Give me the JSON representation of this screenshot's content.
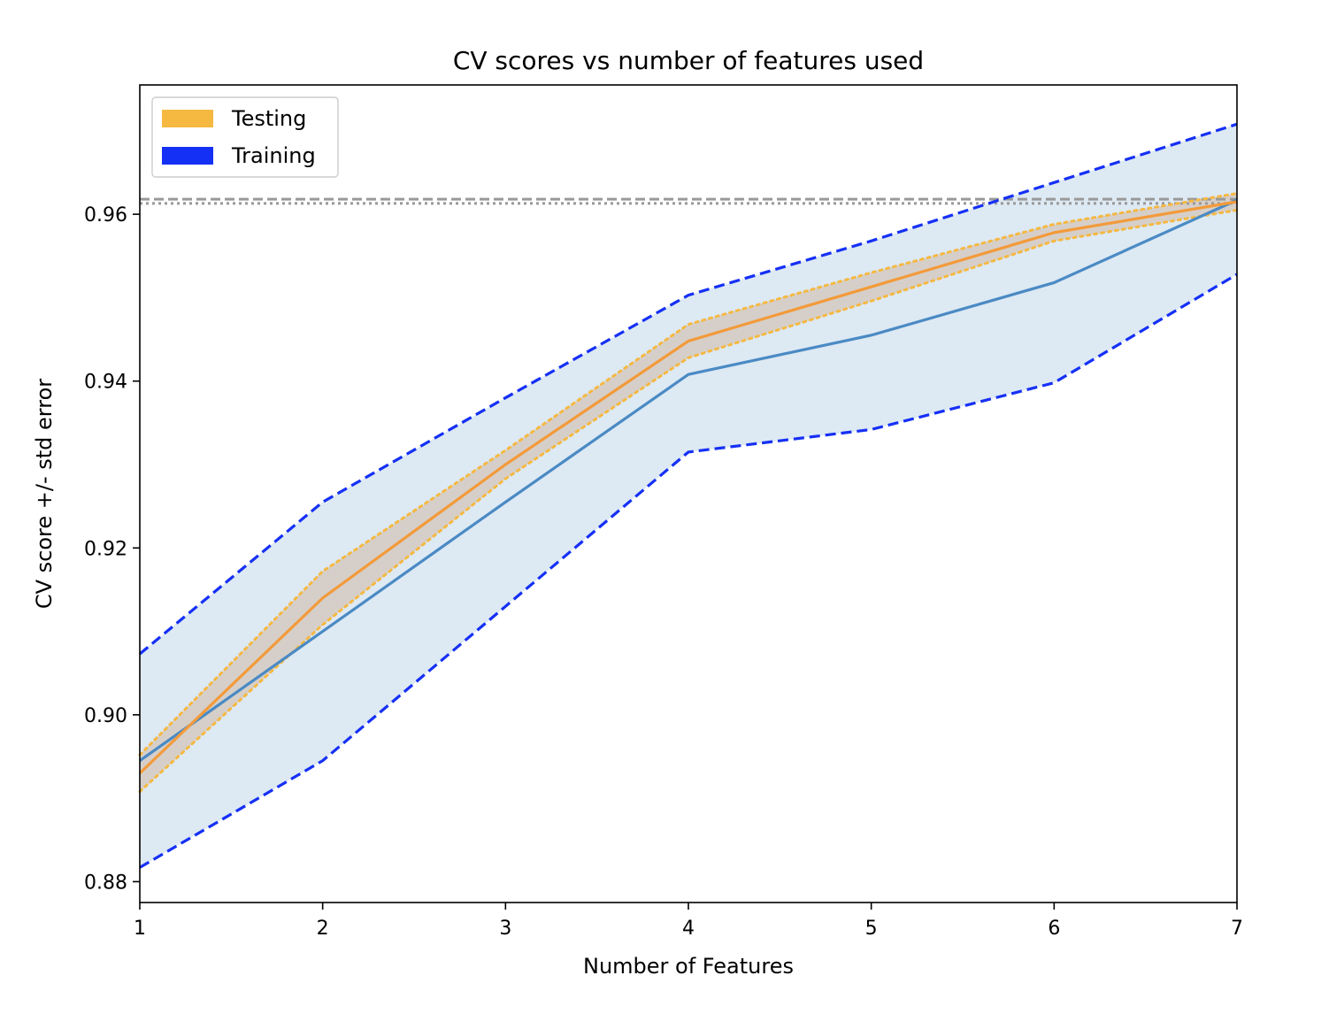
{
  "chart_data": {
    "type": "line",
    "title": "CV scores vs number of features used",
    "xlabel": "Number of Features",
    "ylabel": "CV score +/- std error",
    "xlim": [
      1,
      7
    ],
    "ylim": [
      0.8775,
      0.9755
    ],
    "x_ticks": [
      "1",
      "2",
      "3",
      "4",
      "5",
      "6",
      "7"
    ],
    "y_ticks": [
      "0.88",
      "0.90",
      "0.92",
      "0.94",
      "0.96"
    ],
    "x": [
      1,
      2,
      3,
      4,
      5,
      6,
      7
    ],
    "grid": false,
    "legend_position": "top-left",
    "legend": [
      {
        "label": "Testing",
        "color": "#f5b841"
      },
      {
        "label": "Training",
        "color": "#1530f5"
      }
    ],
    "series": [
      {
        "name": "Testing",
        "color": "#f39a3a",
        "band_color": "#f5b841",
        "values": [
          0.893,
          0.914,
          0.93,
          0.9448,
          0.9513,
          0.9578,
          0.9615
        ],
        "lower": [
          0.8908,
          0.9108,
          0.9283,
          0.9428,
          0.9496,
          0.9568,
          0.9605
        ],
        "upper": [
          0.8952,
          0.9172,
          0.9317,
          0.9468,
          0.953,
          0.9588,
          0.9625
        ]
      },
      {
        "name": "Training",
        "color": "#4a8ac4",
        "band_color": "#1530f5",
        "values": [
          0.8945,
          0.91,
          0.9255,
          0.9408,
          0.9455,
          0.9518,
          0.9617
        ],
        "lower": [
          0.8817,
          0.8945,
          0.913,
          0.9315,
          0.9342,
          0.9398,
          0.9528
        ],
        "upper": [
          0.9073,
          0.9255,
          0.938,
          0.9503,
          0.9568,
          0.9638,
          0.9708
        ]
      }
    ],
    "reference_lines": [
      {
        "y": 0.9618,
        "style": "dashed",
        "color": "#999999"
      },
      {
        "y": 0.9613,
        "style": "dotted",
        "color": "#999999"
      }
    ]
  }
}
